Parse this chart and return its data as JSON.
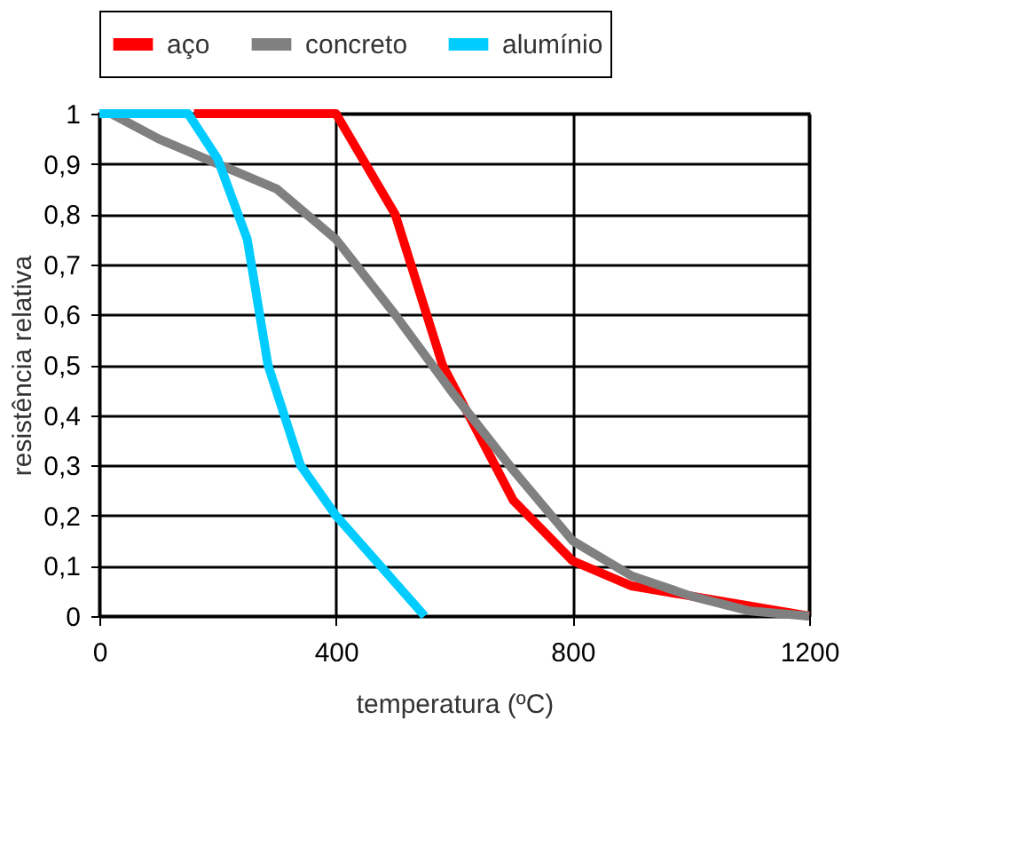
{
  "chart_data": {
    "type": "line",
    "xlabel": "temperatura (ºC)",
    "ylabel": "resistência relativa",
    "xlim": [
      0,
      1200
    ],
    "xticks": [
      0,
      400,
      800,
      1200
    ],
    "ylim": [
      0,
      1
    ],
    "yticks": [
      {
        "value": 0,
        "label": "0"
      },
      {
        "value": 0.1,
        "label": "0,1"
      },
      {
        "value": 0.2,
        "label": "0,2"
      },
      {
        "value": 0.3,
        "label": "0,3"
      },
      {
        "value": 0.4,
        "label": "0,4"
      },
      {
        "value": 0.5,
        "label": "0,5"
      },
      {
        "value": 0.6,
        "label": "0,6"
      },
      {
        "value": 0.7,
        "label": "0,7"
      },
      {
        "value": 0.8,
        "label": "0,8"
      },
      {
        "value": 0.9,
        "label": "0,9"
      },
      {
        "value": 1,
        "label": "1"
      }
    ],
    "grid": true,
    "legend": "top",
    "marker": "none",
    "line_style": "solid",
    "series": [
      {
        "name": "aço",
        "color": "#ff0000",
        "x": [
          160,
          400,
          500,
          580,
          700,
          800,
          900,
          1000,
          1100,
          1200
        ],
        "values": [
          1,
          1,
          0.8,
          0.5,
          0.23,
          0.11,
          0.06,
          0.04,
          0.02,
          0
        ]
      },
      {
        "name": "concreto",
        "color": "#808080",
        "x": [
          20,
          100,
          200,
          300,
          400,
          500,
          600,
          700,
          800,
          900,
          1000,
          1100,
          1200
        ],
        "values": [
          1,
          0.95,
          0.9,
          0.85,
          0.75,
          0.6,
          0.44,
          0.29,
          0.15,
          0.08,
          0.04,
          0.01,
          0
        ]
      },
      {
        "name": "alumínio",
        "color": "#00ccff",
        "x": [
          0,
          150,
          200,
          250,
          285,
          340,
          400,
          550
        ],
        "values": [
          1,
          1,
          0.91,
          0.75,
          0.5,
          0.3,
          0.2,
          0
        ]
      }
    ]
  }
}
